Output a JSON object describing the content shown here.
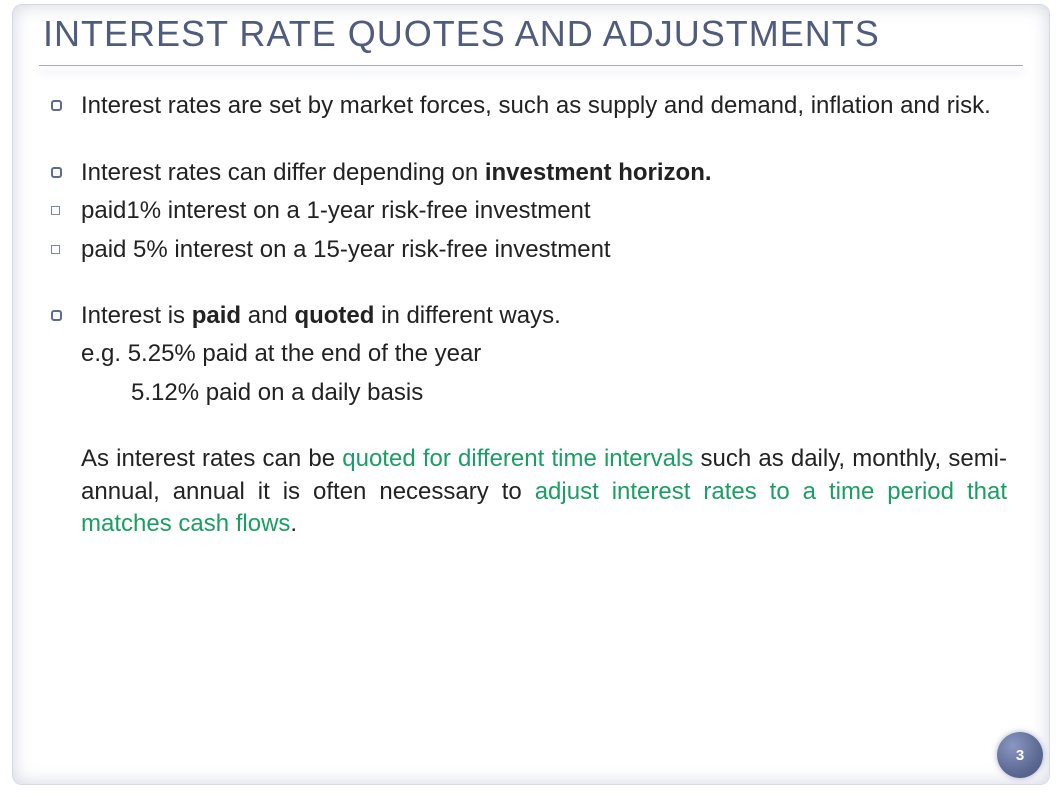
{
  "title": "INTEREST RATE QUOTES AND ADJUSTMENTS",
  "page_number": "3",
  "colors": {
    "title": "#4f5c7d",
    "body_text": "#222222",
    "highlight": "#1a9e63",
    "bullet_border": "#5b6b94",
    "frame_border": "#d6d9e6"
  },
  "typography": {
    "title_fontsize": 36,
    "body_fontsize": 24,
    "font_family": "Verdana"
  },
  "bullets": [
    {
      "type": "ring",
      "justify": true,
      "runs": [
        {
          "t": "Interest rates are set by market forces, such as supply and demand, inflation and risk."
        }
      ]
    },
    {
      "type": "gap"
    },
    {
      "type": "ring",
      "runs": [
        {
          "t": "Interest rates can differ depending on "
        },
        {
          "t": "investment horizon.",
          "bold": true
        }
      ]
    },
    {
      "type": "box",
      "runs": [
        {
          "t": "paid1% interest on a 1-year risk-free investment"
        }
      ]
    },
    {
      "type": "box",
      "runs": [
        {
          "t": "paid 5% interest on a 15-year risk-free investment"
        }
      ]
    },
    {
      "type": "gap"
    },
    {
      "type": "ring",
      "runs": [
        {
          "t": "Interest is "
        },
        {
          "t": "paid",
          "bold": true
        },
        {
          "t": " and "
        },
        {
          "t": "quoted",
          "bold": true
        },
        {
          "t": " in different ways."
        }
      ]
    },
    {
      "type": "plain",
      "runs": [
        {
          "t": "e.g. 5.25% paid at the end of the year"
        }
      ]
    },
    {
      "type": "plain",
      "indent": true,
      "runs": [
        {
          "t": "5.12% paid on a daily basis"
        }
      ]
    },
    {
      "type": "gap"
    },
    {
      "type": "plain",
      "justify": true,
      "runs": [
        {
          "t": "As interest rates can be "
        },
        {
          "t": "quoted for different time intervals",
          "green": true
        },
        {
          "t": " such as daily, monthly, semi-annual, annual it is often necessary to "
        },
        {
          "t": "adjust interest rates to a time period that matches cash flows",
          "green": true
        },
        {
          "t": "."
        }
      ]
    }
  ]
}
